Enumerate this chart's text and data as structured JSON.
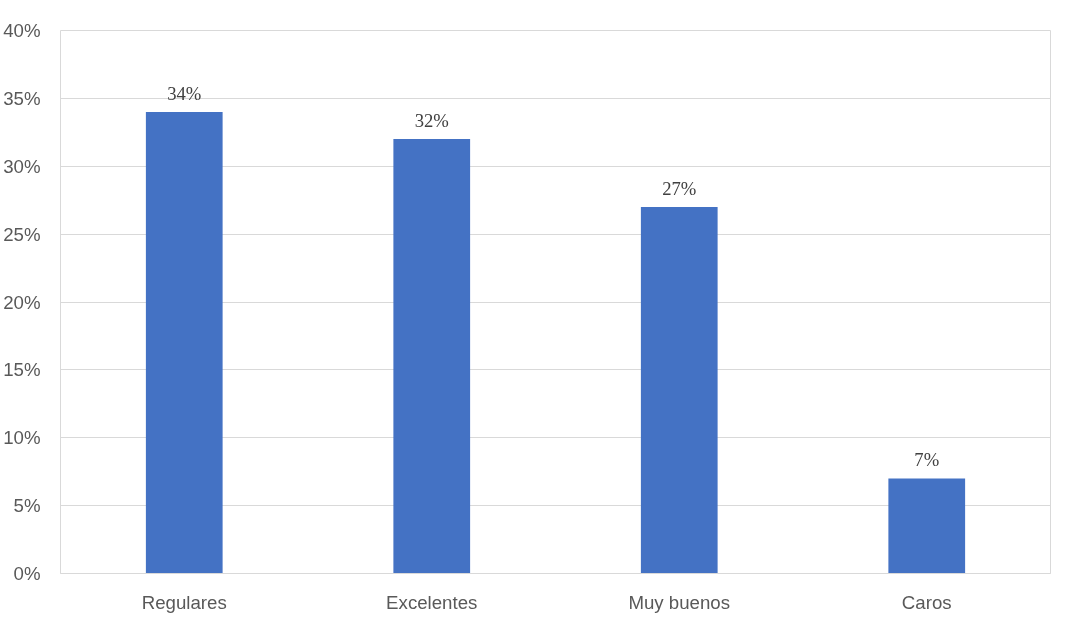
{
  "chart_data": {
    "type": "bar",
    "categories": [
      "Regulares",
      "Excelentes",
      "Muy buenos",
      "Caros"
    ],
    "values": [
      34,
      32,
      27,
      7
    ],
    "color": "#4472c4",
    "value_labels": [
      "34%",
      "32%",
      "27%",
      "7%"
    ],
    "ylim": [
      0,
      40
    ],
    "yticks": [
      {
        "value": 0,
        "label": "0%"
      },
      {
        "value": 5,
        "label": "5%"
      },
      {
        "value": 10,
        "label": "10%"
      },
      {
        "value": 15,
        "label": "15%"
      },
      {
        "value": 20,
        "label": "20%"
      },
      {
        "value": 25,
        "label": "25%"
      },
      {
        "value": 30,
        "label": "30%"
      },
      {
        "value": 35,
        "label": "35%"
      },
      {
        "value": 40,
        "label": "40%"
      }
    ],
    "grid": "y"
  }
}
